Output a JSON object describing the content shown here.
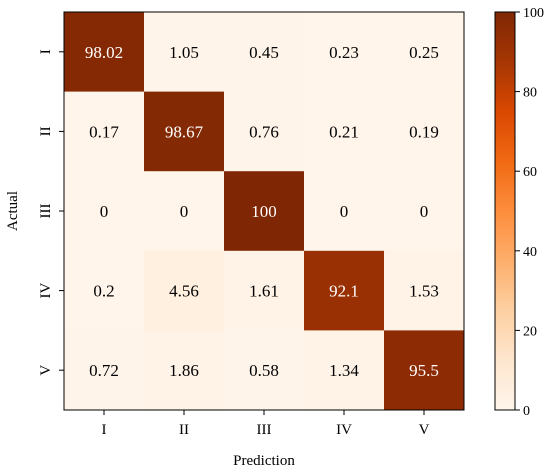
{
  "chart_data": {
    "type": "heatmap",
    "title": "",
    "xlabel": "Prediction",
    "ylabel": "Actual",
    "x_categories": [
      "I",
      "II",
      "III",
      "IV",
      "V"
    ],
    "y_categories": [
      "I",
      "II",
      "III",
      "IV",
      "V"
    ],
    "values": [
      [
        98.02,
        1.05,
        0.45,
        0.23,
        0.25
      ],
      [
        0.17,
        98.67,
        0.76,
        0.21,
        0.19
      ],
      [
        0,
        0,
        100,
        0,
        0
      ],
      [
        0.2,
        4.56,
        1.61,
        92.1,
        1.53
      ],
      [
        0.72,
        1.86,
        0.58,
        1.34,
        95.5
      ]
    ],
    "colorbar": {
      "range": [
        0,
        100
      ],
      "ticks": [
        0,
        20,
        40,
        60,
        80,
        100
      ],
      "colormap": "Oranges",
      "low_color": "#fff5eb",
      "high_color": "#7f2704"
    },
    "grid": false
  }
}
